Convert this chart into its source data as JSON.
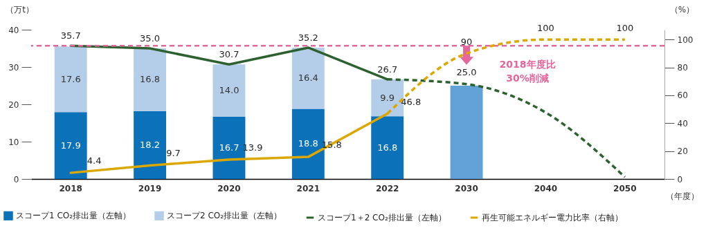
{
  "chart_data": {
    "type": "bar",
    "stacked": true,
    "legend": "bottom",
    "marker": "none",
    "categories": [
      "2018",
      "2019",
      "2020",
      "2021",
      "2022",
      "2030",
      "2040",
      "2050"
    ],
    "xlabel": "（年度）",
    "ylabel": "（万t）",
    "y2label": "（%）",
    "ylim": [
      0,
      40
    ],
    "yticks": [
      0,
      10,
      20,
      30,
      40
    ],
    "y2lim": [
      0,
      107
    ],
    "y2ticks": [
      0,
      20,
      40,
      60,
      80,
      100
    ],
    "series": [
      {
        "name": "スコープ1 CO₂排出量（左軸）",
        "color": "#0b72b9",
        "values": [
          17.9,
          18.2,
          16.7,
          18.8,
          16.8,
          null,
          null,
          null
        ],
        "value_labels": [
          "17.9",
          "18.2",
          "16.7",
          "18.8",
          "16.8",
          null,
          null,
          null
        ]
      },
      {
        "name": "スコープ2 CO₂排出量（左軸）",
        "color": "#b4cde9",
        "values": [
          17.6,
          16.8,
          14.0,
          16.4,
          9.9,
          null,
          null,
          null
        ],
        "value_labels": [
          "17.6",
          "16.8",
          "14.0",
          "16.4",
          "9.9",
          null,
          null,
          null
        ]
      },
      {
        "color": "#62a2d6",
        "values": [
          null,
          null,
          null,
          null,
          null,
          25.0,
          null,
          null
        ],
        "value_labels": [
          null,
          null,
          null,
          null,
          null,
          "25.0",
          null,
          null
        ]
      },
      {
        "name": "スコープ1＋2 CO₂排出量（左軸）",
        "type": "line",
        "color": "#2e6130",
        "line_style": "solid",
        "values": [
          35.7,
          35.0,
          30.7,
          35.2,
          26.7,
          null,
          null,
          null
        ],
        "value_labels": [
          "35.7",
          "35.0",
          "30.7",
          "35.2",
          "26.7",
          null,
          null,
          null
        ]
      },
      {
        "type": "line",
        "color": "#2e6130",
        "line_style": "dashed",
        "values": [
          null,
          null,
          null,
          null,
          26.7,
          25.4,
          17.8,
          0.5
        ]
      },
      {
        "name": "再生可能エネルギー電力比率（右軸）",
        "type": "line",
        "axis": "y2",
        "color": "#dca800",
        "line_style": "solid",
        "values": [
          4.4,
          9.7,
          13.9,
          15.8,
          46.8,
          null,
          null,
          null
        ],
        "value_labels": [
          "4.4",
          "9.7",
          "13.9",
          "15.8",
          "46.8",
          null,
          null,
          null
        ]
      },
      {
        "type": "line",
        "axis": "y2",
        "color": "#dca800",
        "line_style": "dashed",
        "values": [
          null,
          null,
          null,
          null,
          46.8,
          90,
          100,
          100
        ],
        "value_labels": [
          null,
          null,
          null,
          null,
          null,
          "90",
          "100",
          "100"
        ]
      }
    ],
    "ref_lines": [
      {
        "axis": "y",
        "value": 35.7,
        "color": "#e5659c",
        "line_style": "dashed"
      }
    ],
    "annotations": [
      "2018年度比\n30%削減"
    ]
  }
}
